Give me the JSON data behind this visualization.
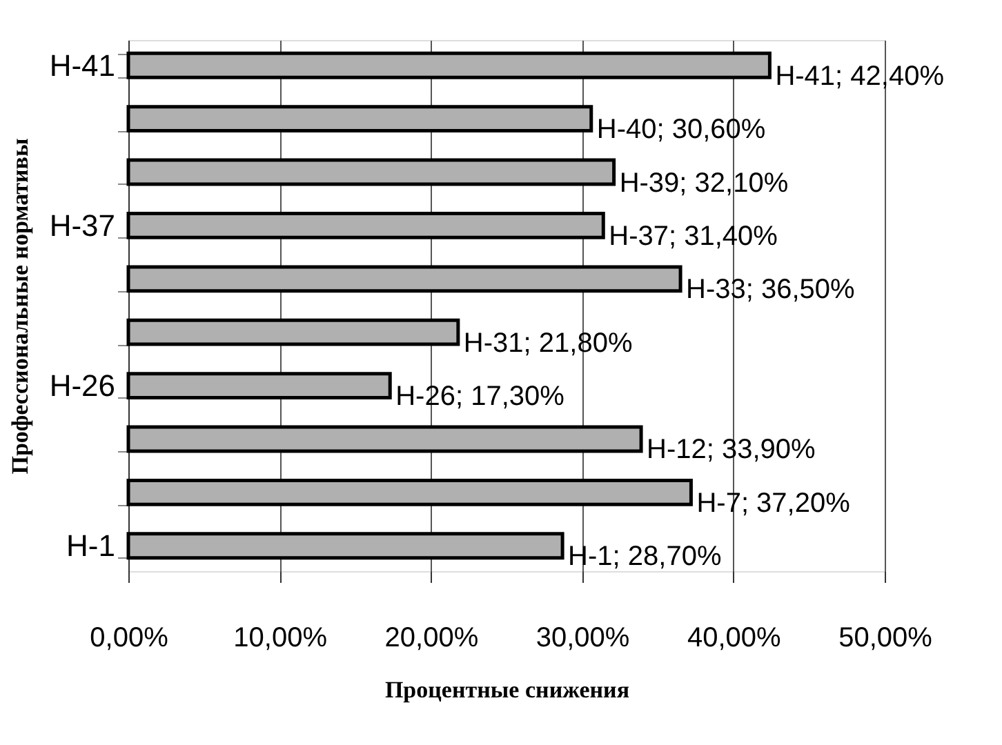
{
  "chart_data": {
    "type": "bar",
    "orientation": "horizontal",
    "xlabel": "Процентные снижения",
    "ylabel": "Профессиональные нормативы",
    "categories": [
      "H-41",
      null,
      null,
      "H-37",
      null,
      null,
      "H-26",
      null,
      null,
      "H-1"
    ],
    "values": [
      42.4,
      30.6,
      32.1,
      31.4,
      36.5,
      21.8,
      17.3,
      33.9,
      37.2,
      28.7
    ],
    "value_labels": [
      "H-41; 42,40%",
      "H-40; 30,60%",
      "H-39; 32,10%",
      "H-37; 31,40%",
      "H-33; 36,50%",
      "H-31; 21,80%",
      "H-26; 17,30%",
      "H-12; 33,90%",
      "H-7; 37,20%",
      "H-1; 28,70%"
    ],
    "color": "#b0b0b0",
    "xlim": [
      0,
      50
    ],
    "xticks": [
      {
        "value": 0,
        "label": "0,00%"
      },
      {
        "value": 10,
        "label": "10,00%"
      },
      {
        "value": 20,
        "label": "20,00%"
      },
      {
        "value": 30,
        "label": "30,00%"
      },
      {
        "value": 40,
        "label": "40,00%"
      },
      {
        "value": 50,
        "label": "50,00%"
      }
    ],
    "grid": "x"
  }
}
